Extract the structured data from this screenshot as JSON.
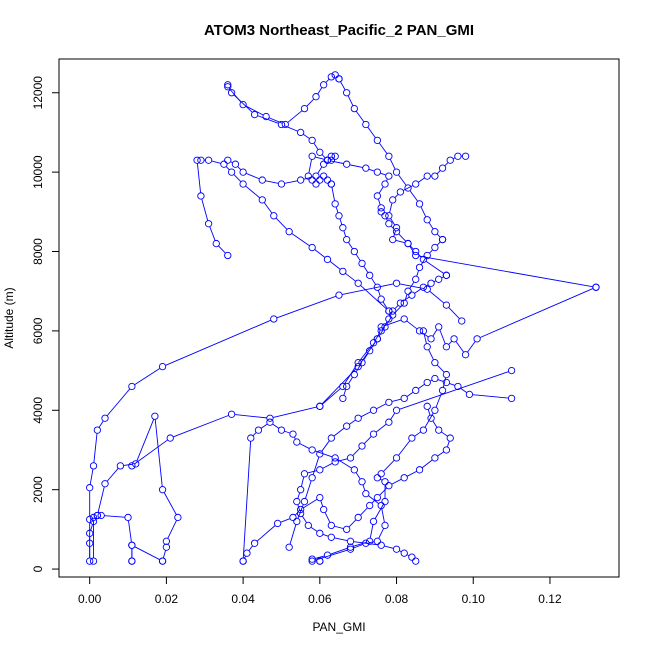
{
  "chart_data": {
    "type": "line",
    "title": "ATOM3 Northeast_Pacific_2 PAN_GMI",
    "xlabel": "PAN_GMI",
    "ylabel": "Altitude (m)",
    "xlim": [
      -0.008,
      0.138
    ],
    "ylim": [
      -200,
      12850
    ],
    "x_ticks": [
      "0.00",
      "0.02",
      "0.04",
      "0.06",
      "0.08",
      "0.10",
      "0.12"
    ],
    "x_tick_values": [
      0.0,
      0.02,
      0.04,
      0.06,
      0.08,
      0.1,
      0.12
    ],
    "y_ticks": [
      "0",
      "2000",
      "4000",
      "6000",
      "8000",
      "10000",
      "12000"
    ],
    "y_tick_values": [
      0,
      2000,
      4000,
      6000,
      8000,
      10000,
      12000
    ],
    "grid": false,
    "legend": "none",
    "series_color": "#0000ff",
    "marker": "open-circle",
    "series": [
      {
        "x": [
          0.011,
          0.011,
          0.01,
          0.003,
          0.002,
          0.001,
          0.0,
          0.0,
          0.0,
          0.0,
          0.0,
          0.001,
          0.002,
          0.004,
          0.011,
          0.019,
          0.048,
          0.065,
          0.08,
          0.088,
          0.093,
          0.097
        ],
        "y": [
          200,
          600,
          1300,
          1350,
          1350,
          1200,
          900,
          650,
          200,
          1250,
          2050,
          2600,
          3500,
          3800,
          4600,
          5100,
          6300,
          6900,
          7200,
          7050,
          6650,
          6250
        ]
      },
      {
        "x": [
          0.001,
          0.001,
          0.002,
          0.004,
          0.008,
          0.012,
          0.017,
          0.019,
          0.023,
          0.02,
          0.02,
          0.019,
          0.019,
          0.011,
          0.011
        ],
        "y": [
          200,
          1300,
          1350,
          2150,
          2600,
          2650,
          3850,
          2000,
          1300,
          700,
          550,
          200,
          200,
          600,
          200
        ],
        "x_note": ""
      },
      {
        "x": [
          0.011,
          0.021,
          0.037,
          0.047,
          0.06,
          0.07,
          0.075,
          0.076,
          0.082,
          0.086,
          0.089,
          0.091,
          0.093,
          0.095,
          0.098,
          0.101,
          0.132
        ],
        "y": [
          2600,
          3300,
          3900,
          3800,
          4100,
          5100,
          5800,
          6100,
          6300,
          6000,
          5800,
          6100,
          5600,
          5800,
          5400,
          5800,
          7100
        ]
      },
      {
        "x": [
          0.132,
          0.085,
          0.083,
          0.079,
          0.08,
          0.078,
          0.079,
          0.081,
          0.085,
          0.088,
          0.09,
          0.092,
          0.094,
          0.096,
          0.098
        ],
        "y": [
          7100,
          7900,
          8200,
          8300,
          8600,
          8900,
          9300,
          9500,
          9700,
          9900,
          9900,
          10100,
          10300,
          10400,
          10400
        ],
        "x_note": ""
      },
      {
        "x": [
          0.04,
          0.041,
          0.043,
          0.049,
          0.053,
          0.055,
          0.06,
          0.061,
          0.063,
          0.067,
          0.07,
          0.073,
          0.075,
          0.078,
          0.082,
          0.086,
          0.09,
          0.093,
          0.094,
          0.091,
          0.089,
          0.088
        ],
        "y": [
          200,
          400,
          650,
          1150,
          1300,
          1500,
          1800,
          1500,
          1100,
          1000,
          1300,
          1600,
          1800,
          2100,
          2300,
          2500,
          2800,
          3000,
          3300,
          3500,
          3800,
          4100
        ]
      },
      {
        "x": [
          0.06,
          0.06,
          0.058,
          0.062,
          0.068,
          0.073,
          0.074,
          0.077,
          0.077,
          0.075,
          0.076,
          0.08,
          0.084,
          0.087,
          0.09,
          0.092,
          0.093,
          0.09,
          0.088,
          0.087
        ],
        "y": [
          200,
          200,
          250,
          350,
          550,
          700,
          1200,
          1700,
          2200,
          2300,
          2400,
          2800,
          3300,
          3500,
          4000,
          4500,
          4900,
          5200,
          5600,
          6000
        ]
      },
      {
        "x": [
          0.058,
          0.068,
          0.072,
          0.075,
          0.077,
          0.076,
          0.072,
          0.071,
          0.069,
          0.064,
          0.058,
          0.054,
          0.053,
          0.05,
          0.047,
          0.044,
          0.042,
          0.04
        ],
        "y": [
          200,
          500,
          650,
          700,
          1100,
          1600,
          1900,
          2200,
          2500,
          2800,
          3000,
          3200,
          3400,
          3500,
          3700,
          3500,
          3300,
          200
        ]
      },
      {
        "x": [
          0.052,
          0.054,
          0.056,
          0.058,
          0.06,
          0.063,
          0.067,
          0.07,
          0.074,
          0.078,
          0.082,
          0.085,
          0.088,
          0.09,
          0.093,
          0.096,
          0.099,
          0.11
        ],
        "y": [
          550,
          1200,
          1700,
          2300,
          2900,
          3300,
          3600,
          3800,
          4000,
          4200,
          4300,
          4500,
          4700,
          4800,
          4700,
          4600,
          4400,
          4300
        ]
      },
      {
        "x": [
          0.11,
          0.08,
          0.078,
          0.074,
          0.071,
          0.068,
          0.064,
          0.06,
          0.056,
          0.055,
          0.054,
          0.055,
          0.057,
          0.06,
          0.063,
          0.068,
          0.076,
          0.08,
          0.082,
          0.084,
          0.085
        ],
        "y": [
          5000,
          4000,
          3700,
          3400,
          3100,
          2800,
          2700,
          2500,
          2400,
          2000,
          1700,
          1400,
          1100,
          900,
          800,
          700,
          600,
          500,
          400,
          300,
          200
        ]
      },
      {
        "x": [
          0.06,
          0.066,
          0.07,
          0.074,
          0.076,
          0.078,
          0.079,
          0.081,
          0.084,
          0.087,
          0.089,
          0.091,
          0.093
        ],
        "y": [
          4100,
          4600,
          5200,
          5700,
          6000,
          6300,
          6500,
          6700,
          6900,
          7100,
          7200,
          7300,
          7400
        ]
      },
      {
        "x": [
          0.093,
          0.087,
          0.085,
          0.083,
          0.08,
          0.078,
          0.077,
          0.076,
          0.076,
          0.075,
          0.077,
          0.078,
          0.075,
          0.072,
          0.067,
          0.062,
          0.058,
          0.057,
          0.058,
          0.059,
          0.06,
          0.061,
          0.062,
          0.063
        ],
        "y": [
          7400,
          7800,
          8000,
          8200,
          8500,
          8700,
          8900,
          9000,
          9100,
          9400,
          9700,
          9900,
          10000,
          10100,
          10200,
          10300,
          10400,
          9900,
          9800,
          9700,
          9800,
          9900,
          9800,
          9700
        ]
      },
      {
        "x": [
          0.063,
          0.064,
          0.065,
          0.066,
          0.067,
          0.069,
          0.071,
          0.073,
          0.075,
          0.076,
          0.078
        ],
        "y": [
          9700,
          9200,
          8900,
          8600,
          8300,
          8000,
          7700,
          7400,
          7100,
          6800,
          6500
        ]
      },
      {
        "x": [
          0.078,
          0.07,
          0.066,
          0.062,
          0.058,
          0.052,
          0.048,
          0.045,
          0.04,
          0.037,
          0.035,
          0.031,
          0.029,
          0.028,
          0.029,
          0.031,
          0.033,
          0.036
        ],
        "y": [
          6500,
          7200,
          7500,
          7800,
          8100,
          8500,
          8900,
          9300,
          9700,
          10000,
          10200,
          10300,
          10300,
          10300,
          9400,
          8700,
          8200,
          7900
        ]
      },
      {
        "x": [
          0.036,
          0.038,
          0.04,
          0.045,
          0.05,
          0.055,
          0.059,
          0.061,
          0.063,
          0.064,
          0.063,
          0.062
        ],
        "y": [
          10300,
          10200,
          10000,
          9800,
          9700,
          9800,
          9900,
          10200,
          10300,
          10400,
          10400,
          10300
        ]
      },
      {
        "x": [
          0.062,
          0.06,
          0.058,
          0.055,
          0.05,
          0.043,
          0.037,
          0.036,
          0.036,
          0.04,
          0.046,
          0.051,
          0.056,
          0.059,
          0.061,
          0.063,
          0.064,
          0.065
        ],
        "y": [
          10300,
          10500,
          10800,
          11000,
          11200,
          11450,
          12000,
          12200,
          12150,
          11700,
          11400,
          11200,
          11600,
          11900,
          12200,
          12400,
          12450,
          12350
        ]
      },
      {
        "x": [
          0.065,
          0.067,
          0.069,
          0.072,
          0.075,
          0.078,
          0.08,
          0.083,
          0.086,
          0.088,
          0.09,
          0.092
        ],
        "y": [
          12350,
          12000,
          11600,
          11200,
          10800,
          10400,
          10000,
          9600,
          9200,
          8800,
          8500,
          8300
        ]
      },
      {
        "x": [
          0.092,
          0.09,
          0.088,
          0.086,
          0.085,
          0.083,
          0.082,
          0.079,
          0.077,
          0.075,
          0.073,
          0.071,
          0.069,
          0.067,
          0.066
        ],
        "y": [
          8300,
          8100,
          7900,
          7600,
          7300,
          7000,
          6700,
          6400,
          6100,
          5800,
          5500,
          5200,
          4900,
          4600,
          4300
        ]
      }
    ]
  }
}
